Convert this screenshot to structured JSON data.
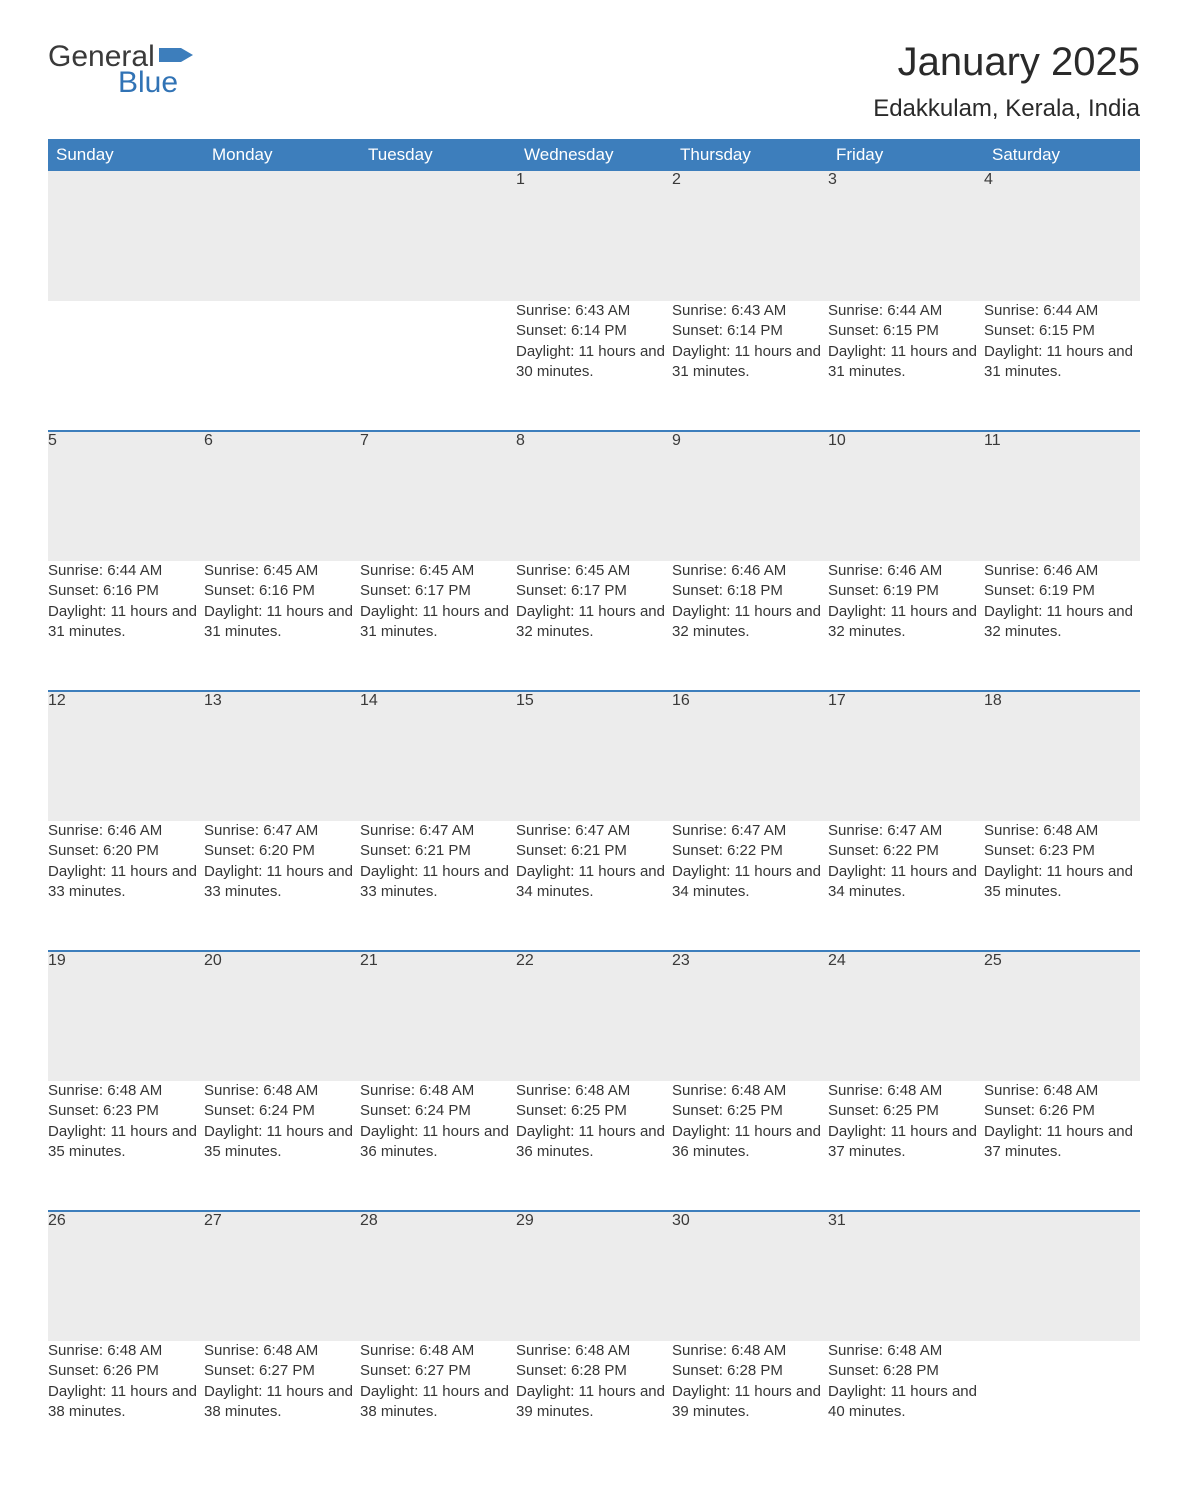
{
  "logo": {
    "text_general": "General",
    "text_blue": "Blue",
    "flag_color": "#3d7ebc"
  },
  "title": "January 2025",
  "location": "Edakkulam, Kerala, India",
  "colors": {
    "header_bg": "#3d7ebc",
    "header_text": "#ffffff",
    "daynum_bg": "#ececec",
    "week_divider": "#3d7ebc",
    "body_text": "#363636",
    "page_bg": "#ffffff"
  },
  "weekdays": [
    "Sunday",
    "Monday",
    "Tuesday",
    "Wednesday",
    "Thursday",
    "Friday",
    "Saturday"
  ],
  "label_sunrise": "Sunrise: ",
  "label_sunset": "Sunset: ",
  "label_daylight_prefix": "Daylight: ",
  "weeks": [
    [
      null,
      null,
      null,
      {
        "d": "1",
        "sr": "6:43 AM",
        "ss": "6:14 PM",
        "dl": "11 hours and 30 minutes."
      },
      {
        "d": "2",
        "sr": "6:43 AM",
        "ss": "6:14 PM",
        "dl": "11 hours and 31 minutes."
      },
      {
        "d": "3",
        "sr": "6:44 AM",
        "ss": "6:15 PM",
        "dl": "11 hours and 31 minutes."
      },
      {
        "d": "4",
        "sr": "6:44 AM",
        "ss": "6:15 PM",
        "dl": "11 hours and 31 minutes."
      }
    ],
    [
      {
        "d": "5",
        "sr": "6:44 AM",
        "ss": "6:16 PM",
        "dl": "11 hours and 31 minutes."
      },
      {
        "d": "6",
        "sr": "6:45 AM",
        "ss": "6:16 PM",
        "dl": "11 hours and 31 minutes."
      },
      {
        "d": "7",
        "sr": "6:45 AM",
        "ss": "6:17 PM",
        "dl": "11 hours and 31 minutes."
      },
      {
        "d": "8",
        "sr": "6:45 AM",
        "ss": "6:17 PM",
        "dl": "11 hours and 32 minutes."
      },
      {
        "d": "9",
        "sr": "6:46 AM",
        "ss": "6:18 PM",
        "dl": "11 hours and 32 minutes."
      },
      {
        "d": "10",
        "sr": "6:46 AM",
        "ss": "6:19 PM",
        "dl": "11 hours and 32 minutes."
      },
      {
        "d": "11",
        "sr": "6:46 AM",
        "ss": "6:19 PM",
        "dl": "11 hours and 32 minutes."
      }
    ],
    [
      {
        "d": "12",
        "sr": "6:46 AM",
        "ss": "6:20 PM",
        "dl": "11 hours and 33 minutes."
      },
      {
        "d": "13",
        "sr": "6:47 AM",
        "ss": "6:20 PM",
        "dl": "11 hours and 33 minutes."
      },
      {
        "d": "14",
        "sr": "6:47 AM",
        "ss": "6:21 PM",
        "dl": "11 hours and 33 minutes."
      },
      {
        "d": "15",
        "sr": "6:47 AM",
        "ss": "6:21 PM",
        "dl": "11 hours and 34 minutes."
      },
      {
        "d": "16",
        "sr": "6:47 AM",
        "ss": "6:22 PM",
        "dl": "11 hours and 34 minutes."
      },
      {
        "d": "17",
        "sr": "6:47 AM",
        "ss": "6:22 PM",
        "dl": "11 hours and 34 minutes."
      },
      {
        "d": "18",
        "sr": "6:48 AM",
        "ss": "6:23 PM",
        "dl": "11 hours and 35 minutes."
      }
    ],
    [
      {
        "d": "19",
        "sr": "6:48 AM",
        "ss": "6:23 PM",
        "dl": "11 hours and 35 minutes."
      },
      {
        "d": "20",
        "sr": "6:48 AM",
        "ss": "6:24 PM",
        "dl": "11 hours and 35 minutes."
      },
      {
        "d": "21",
        "sr": "6:48 AM",
        "ss": "6:24 PM",
        "dl": "11 hours and 36 minutes."
      },
      {
        "d": "22",
        "sr": "6:48 AM",
        "ss": "6:25 PM",
        "dl": "11 hours and 36 minutes."
      },
      {
        "d": "23",
        "sr": "6:48 AM",
        "ss": "6:25 PM",
        "dl": "11 hours and 36 minutes."
      },
      {
        "d": "24",
        "sr": "6:48 AM",
        "ss": "6:25 PM",
        "dl": "11 hours and 37 minutes."
      },
      {
        "d": "25",
        "sr": "6:48 AM",
        "ss": "6:26 PM",
        "dl": "11 hours and 37 minutes."
      }
    ],
    [
      {
        "d": "26",
        "sr": "6:48 AM",
        "ss": "6:26 PM",
        "dl": "11 hours and 38 minutes."
      },
      {
        "d": "27",
        "sr": "6:48 AM",
        "ss": "6:27 PM",
        "dl": "11 hours and 38 minutes."
      },
      {
        "d": "28",
        "sr": "6:48 AM",
        "ss": "6:27 PM",
        "dl": "11 hours and 38 minutes."
      },
      {
        "d": "29",
        "sr": "6:48 AM",
        "ss": "6:28 PM",
        "dl": "11 hours and 39 minutes."
      },
      {
        "d": "30",
        "sr": "6:48 AM",
        "ss": "6:28 PM",
        "dl": "11 hours and 39 minutes."
      },
      {
        "d": "31",
        "sr": "6:48 AM",
        "ss": "6:28 PM",
        "dl": "11 hours and 40 minutes."
      },
      null
    ]
  ]
}
